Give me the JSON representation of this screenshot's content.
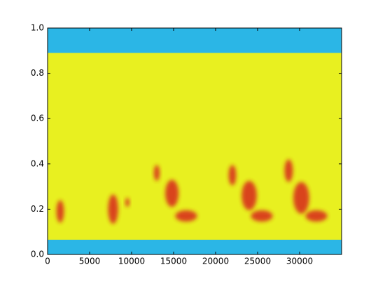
{
  "chart_data": {
    "type": "spectrogram",
    "xlim": [
      0,
      35000
    ],
    "ylim": [
      0,
      1
    ],
    "xticks": [
      0,
      5000,
      10000,
      15000,
      20000,
      25000,
      30000
    ],
    "yticks": [
      {
        "value": 0,
        "label": "0.0"
      },
      {
        "value": 0.2,
        "label": "0.2"
      },
      {
        "value": 0.4,
        "label": "0.4"
      },
      {
        "value": 0.6,
        "label": "0.6"
      },
      {
        "value": 0.8,
        "label": "0.8"
      },
      {
        "value": 1,
        "label": "1.0"
      }
    ],
    "bands": [
      {
        "ylim": [
          0,
          0.065
        ],
        "color": "#2bb6e6"
      },
      {
        "ylim": [
          0.065,
          0.89
        ],
        "color": "#e8f020"
      },
      {
        "ylim": [
          0.89,
          1
        ],
        "color": "#2bb6e6"
      }
    ],
    "spots": {
      "color": "#d8301a",
      "x": [
        1500,
        7800,
        9500,
        13000,
        14800,
        16500,
        22000,
        24000,
        25500,
        28700,
        30200,
        32000
      ],
      "y": [
        0.19,
        0.2,
        0.23,
        0.36,
        0.27,
        0.17,
        0.35,
        0.26,
        0.17,
        0.37,
        0.25,
        0.17
      ],
      "w": [
        900,
        1200,
        500,
        700,
        1600,
        2600,
        900,
        1800,
        2600,
        1000,
        1900,
        2600
      ],
      "h": [
        0.1,
        0.13,
        0.04,
        0.07,
        0.12,
        0.05,
        0.09,
        0.13,
        0.05,
        0.1,
        0.14,
        0.05
      ]
    }
  }
}
